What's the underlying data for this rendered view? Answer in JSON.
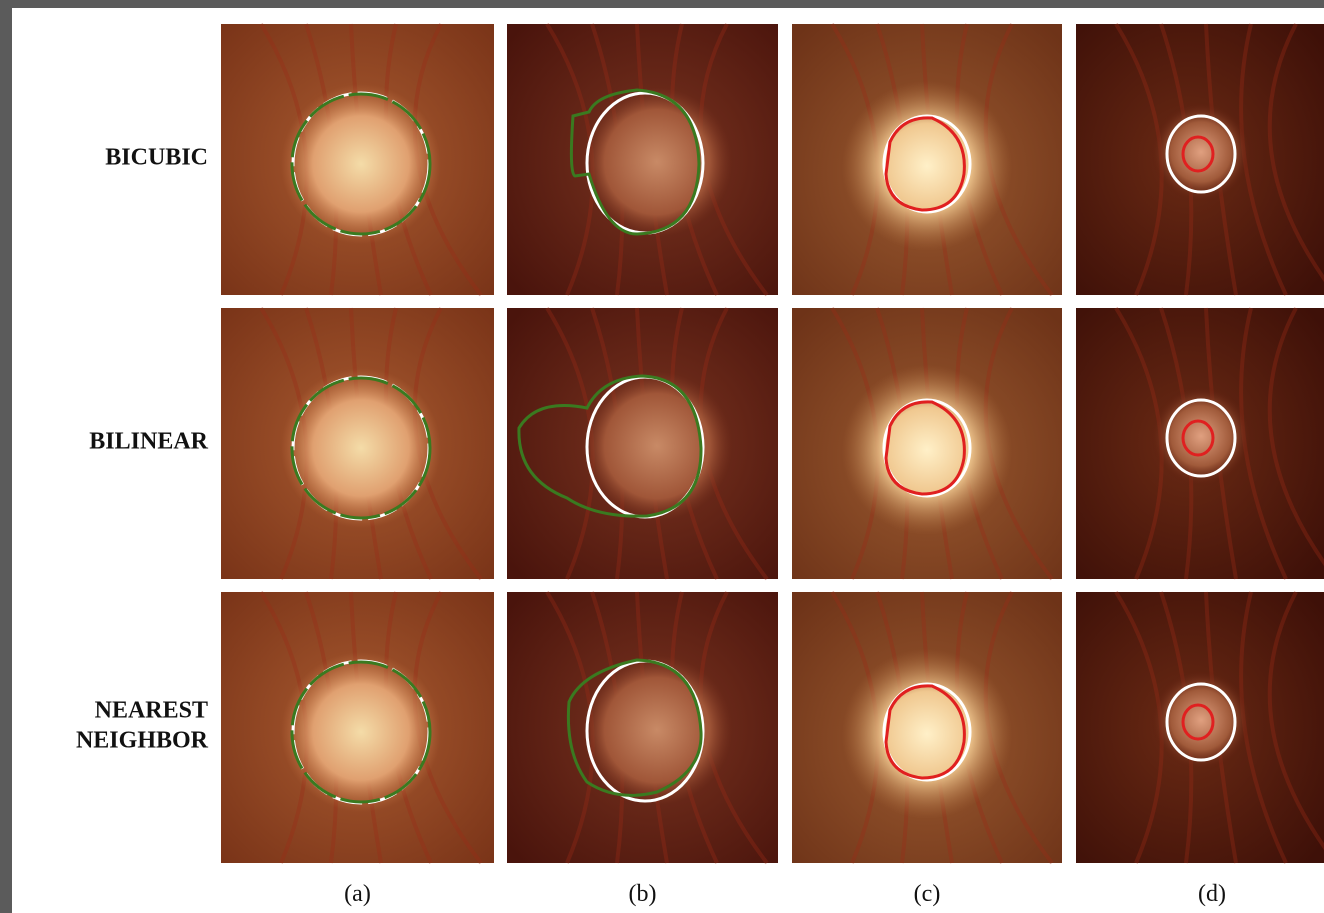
{
  "rows": [
    "BICUBIC",
    "BILINEAR",
    "NEAREST NEIGHBOR"
  ],
  "columns": [
    "(a)",
    "(b)",
    "(c)",
    "(d)"
  ]
}
